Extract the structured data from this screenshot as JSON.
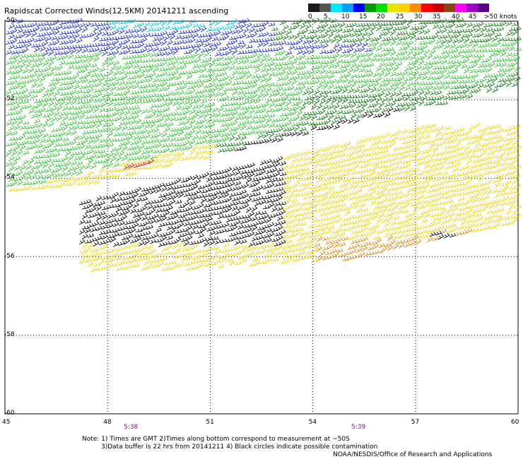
{
  "title": "Rapidscat Corrected Winds(12.5KM) 20141211 ascending",
  "legend": {
    "colors": [
      "#1a1a1a",
      "#555555",
      "#00e8ff",
      "#00a0ff",
      "#0000ff",
      "#009a00",
      "#00e000",
      "#e6e600",
      "#ffd000",
      "#ff8c00",
      "#ff0000",
      "#c80000",
      "#8b4513",
      "#ff00ff",
      "#a000c8",
      "#5a0090"
    ],
    "labels": [
      "0",
      "5",
      "10",
      "15",
      "20",
      "25",
      "30",
      "35",
      "40",
      "45",
      ">50 knots"
    ]
  },
  "axes": {
    "x_ticks": [
      "45",
      "48",
      "51",
      "54",
      "57",
      "60"
    ],
    "y_ticks": [
      "-50",
      "-52",
      "-54",
      "-56",
      "-58",
      "-60"
    ]
  },
  "times": [
    "5:38",
    "5:39"
  ],
  "notes": {
    "line1": "Note: 1) Times are GMT 2)Times along bottom correspond to measurement at ~50S",
    "line2": "3)Data buffer is 22 hrs from 20141211 4) Black circles indicate possible contamination",
    "line3": "NOAA/NESDIS/Office of Research and Applications"
  },
  "wind_color_classes": {
    "cyan": "#00c8e6",
    "blue": "#1a2ad0",
    "green": "#2ec42e",
    "dark_green": "#0b7a0b",
    "yellow": "#f2d400",
    "orange": "#e0860a",
    "red": "#d01818",
    "black": "#000000"
  }
}
